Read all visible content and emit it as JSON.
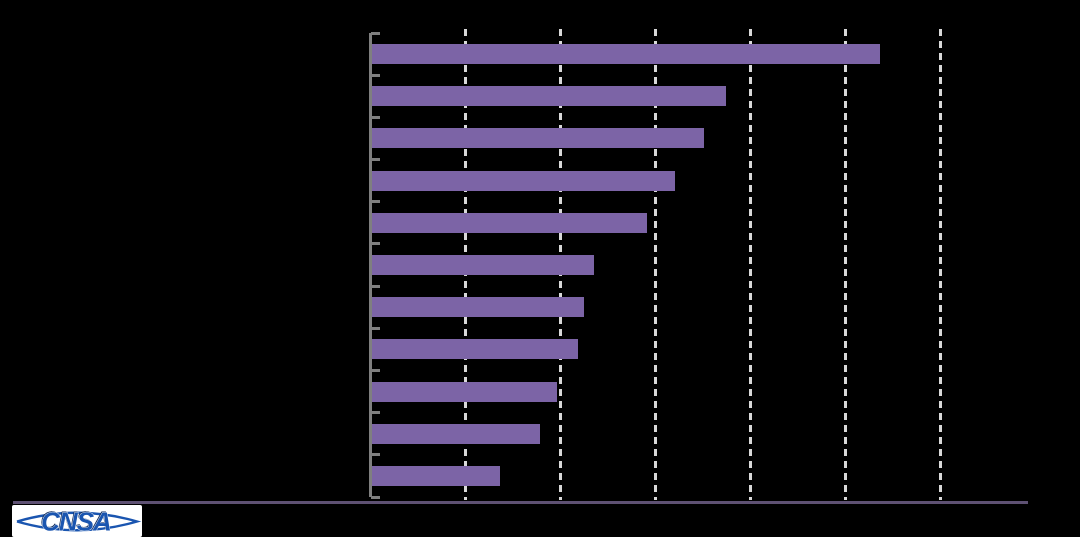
{
  "page": {
    "background": "#000000"
  },
  "chart_data": {
    "type": "bar",
    "orientation": "horizontal",
    "title": "",
    "xlabel": "",
    "ylabel": "",
    "categories": [
      "",
      "",
      "",
      "",
      "",
      "",
      "",
      "",
      "",
      "",
      ""
    ],
    "values": [
      53.5,
      37.3,
      35.0,
      31.9,
      29.0,
      23.4,
      22.3,
      21.7,
      19.5,
      17.7,
      13.5
    ],
    "xlim": [
      0,
      70
    ],
    "x_gridlines": [
      10,
      20,
      30,
      40,
      50,
      60
    ],
    "grid": "vertical-dashed",
    "legend_position": "none",
    "colors": {
      "bar": "#7C64A6",
      "axis": "#7F7F7F",
      "gridline": "#D8D8D8"
    }
  },
  "footer": {
    "rule_color": "#5E5173"
  },
  "logo": {
    "label": "CNSA",
    "text_color": "#1A55B0",
    "shadow_color": "#0E2A5C",
    "background": "#FFFFFF"
  }
}
